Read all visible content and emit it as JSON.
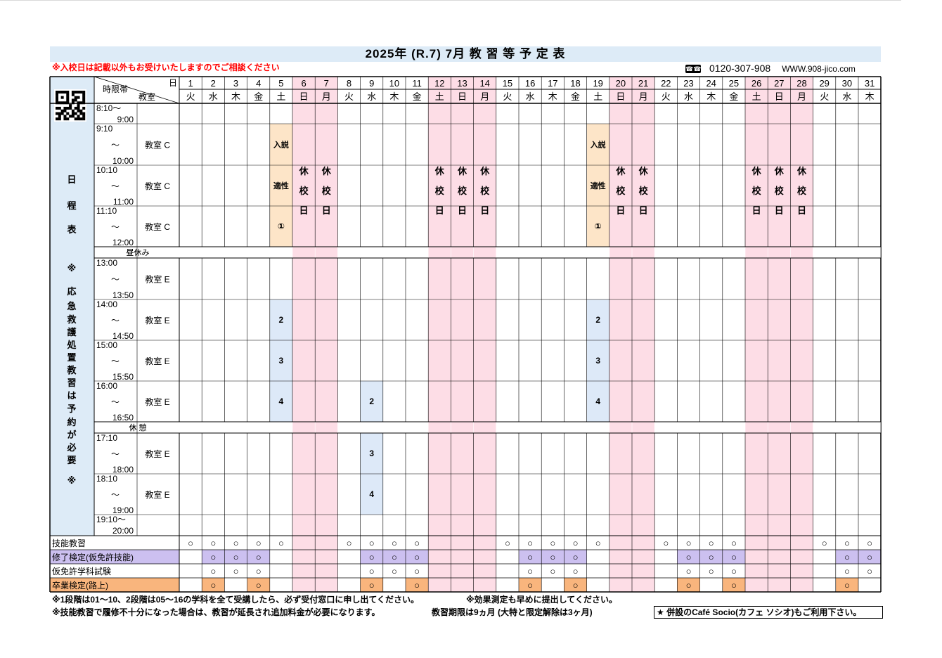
{
  "header": {
    "title": "2025年 (R.7)  7月  教 習 等 予 定 表",
    "notice": "※入校日は記載以外もお受けいたしますのでご相談ください",
    "phone_icon": "free-dial-icon",
    "phone": "0120-307-908",
    "url": "WWW.908-jico.com"
  },
  "table": {
    "corner": {
      "day_label": "日",
      "time_label": "時限帯",
      "room_label": "教室"
    },
    "qr_icon": "qr-code-icon",
    "side_label": [
      "日",
      "程",
      "表",
      "※",
      "応",
      "急",
      "救",
      "護",
      "処",
      "置",
      "教",
      "習",
      "は",
      "予",
      "約",
      "が",
      "必",
      "要",
      "※"
    ],
    "dates": [
      1,
      2,
      3,
      4,
      5,
      6,
      7,
      8,
      9,
      10,
      11,
      12,
      13,
      14,
      15,
      16,
      17,
      18,
      19,
      20,
      21,
      22,
      23,
      24,
      25,
      26,
      27,
      28,
      29,
      30,
      31
    ],
    "weekdays": [
      "火",
      "水",
      "木",
      "金",
      "土",
      "日",
      "月",
      "火",
      "水",
      "木",
      "金",
      "土",
      "日",
      "月",
      "火",
      "水",
      "木",
      "金",
      "土",
      "日",
      "月",
      "火",
      "水",
      "木",
      "金",
      "土",
      "日",
      "月",
      "火",
      "水",
      "木"
    ],
    "closed_days": [
      6,
      7,
      12,
      13,
      14,
      20,
      21,
      26,
      27,
      28
    ],
    "closed_text": [
      "休",
      "校",
      "日"
    ],
    "periods": [
      {
        "start": "8:10～",
        "tilde": "",
        "end": "9:00",
        "room": ""
      },
      {
        "start": "9:10",
        "tilde": "～",
        "end": "10:00",
        "room": "教室 C"
      },
      {
        "start": "10:10",
        "tilde": "～",
        "end": "11:00",
        "room": "教室 C"
      },
      {
        "start": "11:10",
        "tilde": "～",
        "end": "12:00",
        "room": "教室 C"
      },
      {
        "start": "13:00",
        "tilde": "～",
        "end": "13:50",
        "room": "教室 E"
      },
      {
        "start": "14:00",
        "tilde": "～",
        "end": "14:50",
        "room": "教室 E"
      },
      {
        "start": "15:00",
        "tilde": "～",
        "end": "15:50",
        "room": "教室 E"
      },
      {
        "start": "16:00",
        "tilde": "～",
        "end": "16:50",
        "room": "教室 E"
      },
      {
        "start": "17:10",
        "tilde": "～",
        "end": "18:00",
        "room": "教室 E"
      },
      {
        "start": "18:10",
        "tilde": "～",
        "end": "19:00",
        "room": "教室 E"
      },
      {
        "start": "19:10～",
        "tilde": "",
        "end": "20:00",
        "room": ""
      }
    ],
    "breaks": [
      {
        "after_period": 3,
        "label": "昼休み"
      },
      {
        "after_period": 7,
        "label": "休 憩"
      }
    ],
    "sessions": [
      {
        "day": 5,
        "period": 1,
        "text": "入説",
        "kind": "intro"
      },
      {
        "day": 5,
        "period": 2,
        "text": "適性",
        "kind": "intro"
      },
      {
        "day": 5,
        "period": 3,
        "text": "①",
        "kind": "intro"
      },
      {
        "day": 19,
        "period": 1,
        "text": "入説",
        "kind": "intro"
      },
      {
        "day": 19,
        "period": 2,
        "text": "適性",
        "kind": "intro"
      },
      {
        "day": 19,
        "period": 3,
        "text": "①",
        "kind": "intro"
      },
      {
        "day": 5,
        "period": 5,
        "text": "2",
        "kind": "lesson"
      },
      {
        "day": 5,
        "period": 6,
        "text": "3",
        "kind": "lesson"
      },
      {
        "day": 5,
        "period": 7,
        "text": "4",
        "kind": "lesson"
      },
      {
        "day": 19,
        "period": 5,
        "text": "2",
        "kind": "lesson"
      },
      {
        "day": 19,
        "period": 6,
        "text": "3",
        "kind": "lesson"
      },
      {
        "day": 19,
        "period": 7,
        "text": "4",
        "kind": "lesson"
      },
      {
        "day": 9,
        "period": 7,
        "text": "2",
        "kind": "lesson"
      },
      {
        "day": 9,
        "period": 8,
        "text": "3",
        "kind": "lesson"
      },
      {
        "day": 9,
        "period": 9,
        "text": "4",
        "kind": "lesson"
      }
    ],
    "bottom_rows": [
      {
        "label": "技能教習",
        "mark": "○",
        "color": "#ffffff",
        "days": [
          1,
          2,
          3,
          4,
          5,
          8,
          9,
          10,
          11,
          15,
          16,
          17,
          18,
          19,
          22,
          23,
          24,
          25,
          29,
          30,
          31
        ]
      },
      {
        "label": "修了検定(仮免許技能)",
        "mark": "○",
        "color": "#ccc0f0",
        "days": [
          2,
          3,
          4,
          9,
          10,
          11,
          16,
          17,
          18,
          23,
          24,
          25,
          30,
          31
        ]
      },
      {
        "label": "仮免許学科試験",
        "mark": "○",
        "color": "#ffffff",
        "days": [
          2,
          3,
          4,
          9,
          10,
          11,
          16,
          17,
          18,
          23,
          24,
          25,
          30,
          31
        ]
      },
      {
        "label": "卒業検定(路上)",
        "mark": "○",
        "color": "#f9b57d",
        "days": [
          2,
          4,
          9,
          11,
          16,
          18,
          23,
          25,
          30
        ]
      }
    ]
  },
  "colors": {
    "title_bg": "#ddebf7",
    "notice": "#ff0000",
    "closed": "#fddde6",
    "intro": "#fde5c8",
    "lesson": "#dde9f8",
    "side": "#ddebf7",
    "orange": "#f9b57d",
    "purple": "#ccc0f0"
  },
  "footer": {
    "note1": "※1段階は01～10、2段階は05～16の学科を全て受講したら、必ず受付窓口に申し出てください。",
    "note2": "※効果測定も早めに提出してください。",
    "note3": "※技能教習で履修不十分になった場合は、教習が延長され追加料金が必要になります。",
    "note4": "教習期限は9ヵ月 (大特と限定解除は3ヶ月)",
    "cafe": "★ 併設のCafé Socio(カフェ ソシオ)もご利用下さい。"
  }
}
